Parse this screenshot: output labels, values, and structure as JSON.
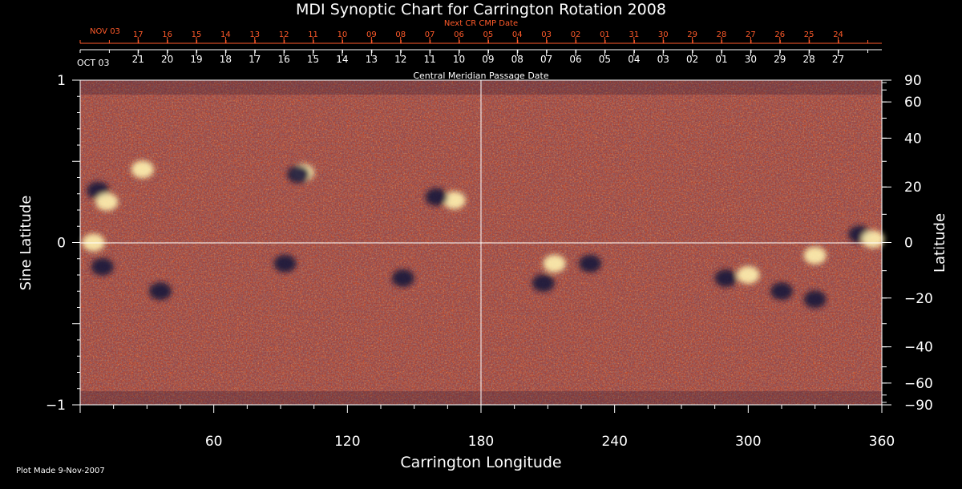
{
  "chart_data": {
    "type": "heatmap",
    "title": "MDI Synoptic Chart for Carrington Rotation 2008",
    "xlabel": "Carrington Longitude",
    "ylabel_left": "Sine Latitude",
    "ylabel_right": "Latitude",
    "xlim": [
      0,
      360
    ],
    "ylim": [
      -1,
      1
    ],
    "x_ticks": [
      60,
      120,
      180,
      240,
      300,
      360
    ],
    "y_ticks_left": [
      "1",
      "0",
      "−1"
    ],
    "y_ticks_right": [
      {
        "deg": 90,
        "label": "90"
      },
      {
        "deg": 60,
        "label": "60"
      },
      {
        "deg": 40,
        "label": "40"
      },
      {
        "deg": 20,
        "label": "20"
      },
      {
        "deg": 0,
        "label": "0"
      },
      {
        "deg": -20,
        "label": "−20"
      },
      {
        "deg": -40,
        "label": "−40"
      },
      {
        "deg": -60,
        "label": "−60"
      },
      {
        "deg": -90,
        "label": "−90"
      }
    ],
    "top_axis_next": {
      "label": "Next CR CMP Date",
      "month_label": "NOV 03",
      "days": [
        "17",
        "16",
        "15",
        "14",
        "13",
        "12",
        "11",
        "10",
        "09",
        "08",
        "07",
        "06",
        "05",
        "04",
        "03",
        "02",
        "01",
        "31",
        "30",
        "29",
        "28",
        "27",
        "26",
        "25",
        "24"
      ],
      "start_lon": 26
    },
    "top_axis_current": {
      "label": "Central Meridian Passage Date",
      "month_label": "OCT 03",
      "days": [
        "21",
        "20",
        "19",
        "18",
        "17",
        "16",
        "15",
        "14",
        "13",
        "12",
        "11",
        "10",
        "09",
        "08",
        "07",
        "06",
        "05",
        "04",
        "03",
        "02",
        "01",
        "30",
        "29",
        "28",
        "27"
      ],
      "start_lon": 26
    },
    "colors": {
      "background": "#000000",
      "field_base": "#e8480c",
      "positive_polarity": "#fff2b0",
      "negative_polarity": "#18163a",
      "next_axis": "#ff5a2a",
      "text": "#ffffff"
    },
    "active_regions": [
      {
        "lon": 6,
        "lat": 0.0,
        "polarity": "positive"
      },
      {
        "lon": 8,
        "lat": 0.32,
        "polarity": "negative"
      },
      {
        "lon": 12,
        "lat": 0.25,
        "polarity": "positive"
      },
      {
        "lon": 10,
        "lat": -0.15,
        "polarity": "negative"
      },
      {
        "lon": 28,
        "lat": 0.45,
        "polarity": "positive"
      },
      {
        "lon": 36,
        "lat": -0.3,
        "polarity": "negative"
      },
      {
        "lon": 100,
        "lat": 0.43,
        "polarity": "positive"
      },
      {
        "lon": 98,
        "lat": 0.42,
        "polarity": "negative"
      },
      {
        "lon": 92,
        "lat": -0.13,
        "polarity": "negative"
      },
      {
        "lon": 145,
        "lat": -0.22,
        "polarity": "negative"
      },
      {
        "lon": 168,
        "lat": 0.26,
        "polarity": "positive"
      },
      {
        "lon": 160,
        "lat": 0.28,
        "polarity": "negative"
      },
      {
        "lon": 213,
        "lat": -0.13,
        "polarity": "positive"
      },
      {
        "lon": 229,
        "lat": -0.13,
        "polarity": "negative"
      },
      {
        "lon": 208,
        "lat": -0.25,
        "polarity": "negative"
      },
      {
        "lon": 290,
        "lat": -0.22,
        "polarity": "negative"
      },
      {
        "lon": 300,
        "lat": -0.2,
        "polarity": "positive"
      },
      {
        "lon": 315,
        "lat": -0.3,
        "polarity": "negative"
      },
      {
        "lon": 330,
        "lat": -0.35,
        "polarity": "negative"
      },
      {
        "lon": 350,
        "lat": 0.05,
        "polarity": "negative"
      },
      {
        "lon": 356,
        "lat": 0.02,
        "polarity": "positive"
      },
      {
        "lon": 330,
        "lat": -0.08,
        "polarity": "positive"
      }
    ]
  },
  "footer": {
    "plot_made": "Plot Made  9-Nov-2007"
  }
}
